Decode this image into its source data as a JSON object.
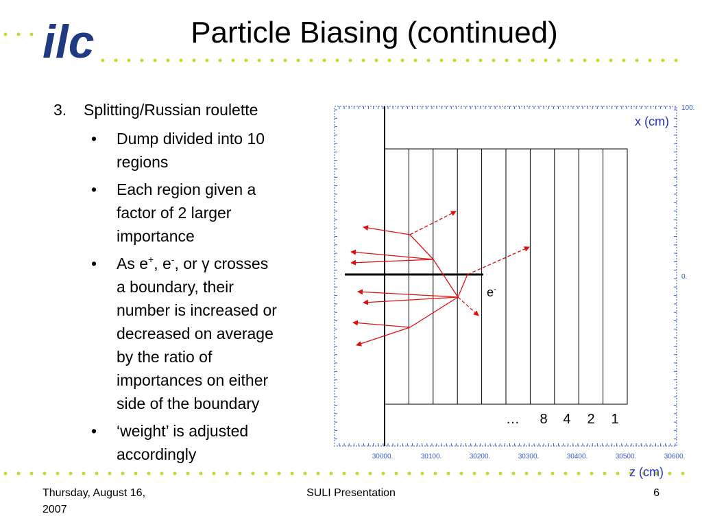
{
  "header": {
    "logo": "ilc",
    "title": "Particle Biasing (continued)"
  },
  "body": {
    "number": "3.",
    "heading": "Splitting/Russian roulette",
    "bullets": [
      {
        "lines": [
          "Dump divided into 10",
          "regions"
        ]
      },
      {
        "lines": [
          "Each region given a",
          "factor of 2 larger",
          "importance"
        ]
      },
      {
        "parts": [
          "As e",
          "+",
          ", e",
          "-",
          ", or γ crosses"
        ],
        "lines": [
          "a boundary, their",
          "number is increased or",
          "decreased on average",
          "by the ratio of",
          "importances on either",
          "side of the boundary"
        ]
      },
      {
        "lines": [
          "‘weight’ is adjusted",
          "accordingly"
        ]
      }
    ]
  },
  "diagram": {
    "x_axis_label": "z (cm)",
    "y_axis_label": "x (cm)",
    "x_tick_labels": [
      "30000.",
      "30100.",
      "30200.",
      "30300.",
      "30400.",
      "30500.",
      "30600."
    ],
    "y_tick_labels": [
      "100.",
      "0."
    ],
    "region_labels": [
      "…",
      "8",
      "4",
      "2",
      "1"
    ],
    "particle": "e",
    "particle_charge": "-"
  },
  "footer": {
    "date_lines": [
      "Thursday, August 16,",
      "2007"
    ],
    "center": "SULI Presentation",
    "page": "6"
  }
}
